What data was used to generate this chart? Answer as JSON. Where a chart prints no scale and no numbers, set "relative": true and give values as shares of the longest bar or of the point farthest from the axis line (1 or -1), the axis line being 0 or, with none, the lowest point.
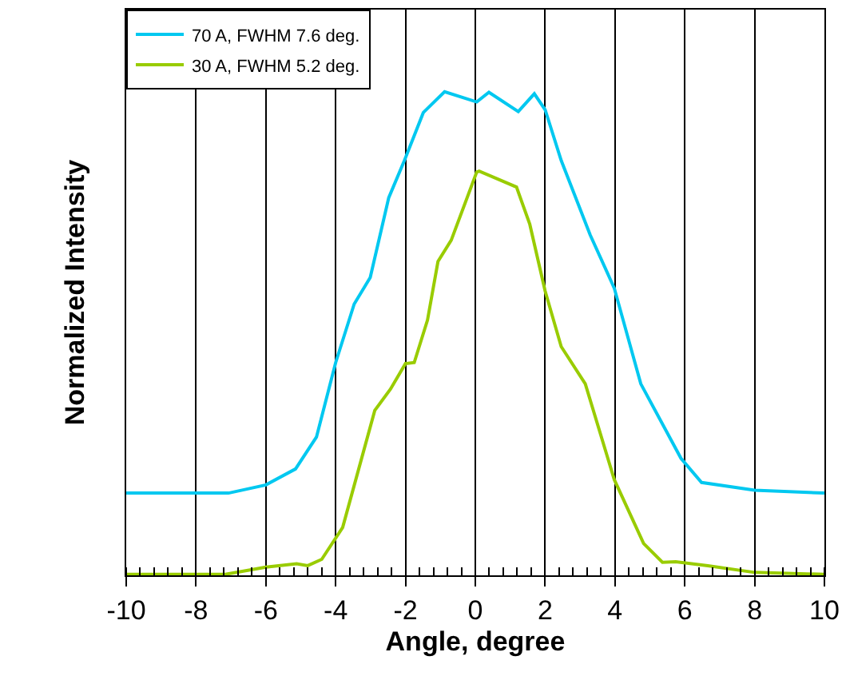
{
  "chart_data": {
    "type": "line",
    "relative": true,
    "xlabel": "Angle, degree",
    "ylabel": "Normalized Intensity",
    "xlim": [
      -10,
      10
    ],
    "xticks": [
      -10,
      -8,
      -6,
      -4,
      -2,
      0,
      2,
      4,
      6,
      8,
      10
    ],
    "grid": "x",
    "legend": "top left",
    "tick_labels": "x",
    "marker": "none",
    "line_style": "solid",
    "series": [
      {
        "name": "70 A, FWHM 7.6 deg.",
        "color": "#00c8f0",
        "x": [
          -10,
          -7.07,
          -6,
          -5.15,
          -4.55,
          -4,
          -3.47,
          -3.01,
          -2.48,
          -2.03,
          -1.49,
          -0.88,
          0.04,
          0.39,
          1.23,
          1.69,
          2,
          2.46,
          3.29,
          3.98,
          4.74,
          5.89,
          6.48,
          8,
          10
        ],
        "values": [
          0.17,
          0.17,
          0.187,
          0.22,
          0.286,
          0.44,
          0.561,
          0.616,
          0.781,
          0.858,
          0.957,
          1,
          0.979,
          0.999,
          0.959,
          0.996,
          0.963,
          0.858,
          0.704,
          0.594,
          0.396,
          0.242,
          0.192,
          0.176,
          0.17
        ]
      },
      {
        "name": "30 A, FWHM 5.2 deg.",
        "color": "#99cc00",
        "x": [
          -10,
          -7.16,
          -6,
          -5.12,
          -4.8,
          -4.4,
          -3.8,
          -3.34,
          -2.88,
          -2.43,
          -2,
          -1.75,
          -1.37,
          -1.07,
          -0.69,
          0.04,
          0.11,
          1.18,
          1.56,
          2,
          2.46,
          3.15,
          3.98,
          4.82,
          5.36,
          5.74,
          6.66,
          8,
          10
        ],
        "values": [
          0.002,
          0.002,
          0.017,
          0.024,
          0.02,
          0.033,
          0.099,
          0.22,
          0.341,
          0.385,
          0.438,
          0.44,
          0.528,
          0.649,
          0.693,
          0.834,
          0.836,
          0.803,
          0.726,
          0.588,
          0.473,
          0.396,
          0.198,
          0.066,
          0.027,
          0.028,
          0.02,
          0.006,
          0.002
        ]
      }
    ]
  }
}
